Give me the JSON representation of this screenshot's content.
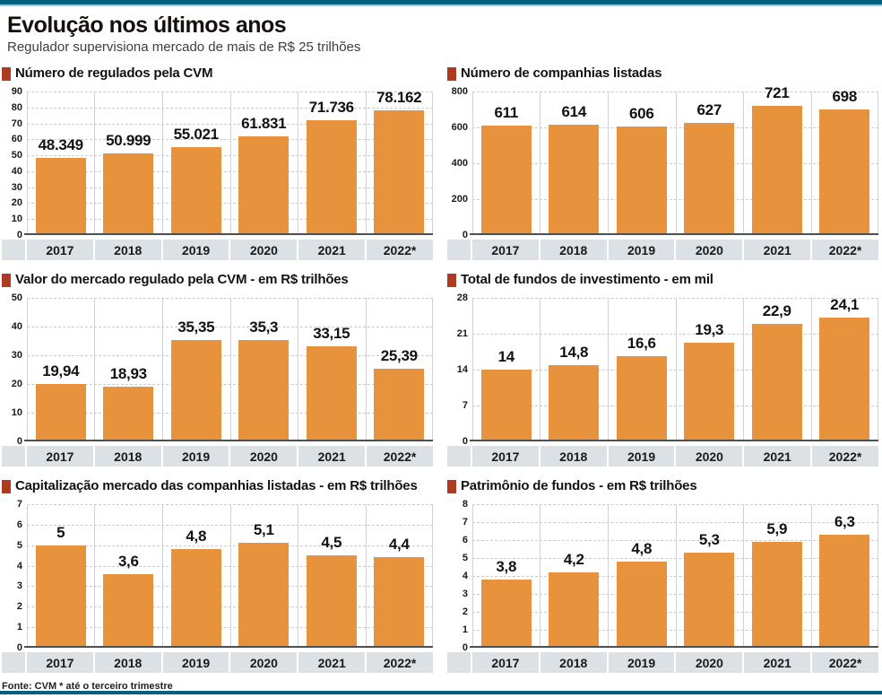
{
  "page": {
    "title": "Evolução nos últimos anos",
    "subtitle": "Regulador supervisiona mercado de mais de R$ 25 trilhões",
    "source": "Fonte: CVM * até o terceiro trimestre"
  },
  "colors": {
    "bar": "#E7923C",
    "bullet": "#AE3A20",
    "teal": "#02617E",
    "teal_light": "#A5C9D5",
    "band": "#DCE1E6",
    "grid": "#CBCBCB",
    "separator": "#D2D2D2",
    "baseline": "#4F4F4F"
  },
  "categories": [
    "2017",
    "2018",
    "2019",
    "2020",
    "2021",
    "2022*"
  ],
  "chart_data": [
    {
      "type": "bar",
      "title": "Número de regulados pela CVM",
      "categories": [
        "2017",
        "2018",
        "2019",
        "2020",
        "2021",
        "2022*"
      ],
      "values": [
        48.349,
        50.999,
        55.021,
        61.831,
        71.736,
        78.162
      ],
      "labels": [
        "48.349",
        "50.999",
        "55.021",
        "61.831",
        "71.736",
        "78.162"
      ],
      "ylim": [
        0,
        90
      ],
      "yticks": [
        0,
        10,
        20,
        30,
        40,
        50,
        60,
        70,
        80,
        90
      ],
      "grid": "dashed",
      "legend": "none"
    },
    {
      "type": "bar",
      "title": "Número de companhias listadas",
      "categories": [
        "2017",
        "2018",
        "2019",
        "2020",
        "2021",
        "2022*"
      ],
      "values": [
        611,
        614,
        606,
        627,
        721,
        698
      ],
      "labels": [
        "611",
        "614",
        "606",
        "627",
        "721",
        "698"
      ],
      "ylim": [
        0,
        800
      ],
      "yticks": [
        0,
        200,
        400,
        600,
        800
      ],
      "grid": "dashed",
      "legend": "none"
    },
    {
      "type": "bar",
      "title": "Valor do mercado regulado pela CVM - em R$ trilhões",
      "categories": [
        "2017",
        "2018",
        "2019",
        "2020",
        "2021",
        "2022*"
      ],
      "values": [
        19.94,
        18.93,
        35.35,
        35.3,
        33.15,
        25.39
      ],
      "labels": [
        "19,94",
        "18,93",
        "35,35",
        "35,3",
        "33,15",
        "25,39"
      ],
      "ylim": [
        0,
        50
      ],
      "yticks": [
        0,
        10,
        20,
        30,
        40,
        50
      ],
      "grid": "dashed",
      "legend": "none"
    },
    {
      "type": "bar",
      "title": "Total de fundos de investimento - em mil",
      "categories": [
        "2017",
        "2018",
        "2019",
        "2020",
        "2021",
        "2022*"
      ],
      "values": [
        14,
        14.8,
        16.6,
        19.3,
        22.9,
        24.1
      ],
      "labels": [
        "14",
        "14,8",
        "16,6",
        "19,3",
        "22,9",
        "24,1"
      ],
      "ylim": [
        0,
        28
      ],
      "yticks": [
        0,
        7,
        14,
        21,
        28
      ],
      "grid": "dashed",
      "legend": "none"
    },
    {
      "type": "bar",
      "title": "Capitalização mercado das companhias listadas - em R$ trilhões",
      "categories": [
        "2017",
        "2018",
        "2019",
        "2020",
        "2021",
        "2022*"
      ],
      "values": [
        5,
        3.6,
        4.8,
        5.1,
        4.5,
        4.4
      ],
      "labels": [
        "5",
        "3,6",
        "4,8",
        "5,1",
        "4,5",
        "4,4"
      ],
      "ylim": [
        0,
        7
      ],
      "yticks": [
        0,
        1,
        2,
        3,
        4,
        5,
        6,
        7
      ],
      "grid": "dashed",
      "legend": "none"
    },
    {
      "type": "bar",
      "title": "Patrimônio de fundos - em R$ trilhões",
      "categories": [
        "2017",
        "2018",
        "2019",
        "2020",
        "2021",
        "2022*"
      ],
      "values": [
        3.8,
        4.2,
        4.8,
        5.3,
        5.9,
        6.3
      ],
      "labels": [
        "3,8",
        "4,2",
        "4,8",
        "5,3",
        "5,9",
        "6,3"
      ],
      "ylim": [
        0,
        8
      ],
      "yticks": [
        0,
        1,
        2,
        3,
        4,
        5,
        6,
        7,
        8
      ],
      "grid": "dashed",
      "legend": "none"
    }
  ]
}
